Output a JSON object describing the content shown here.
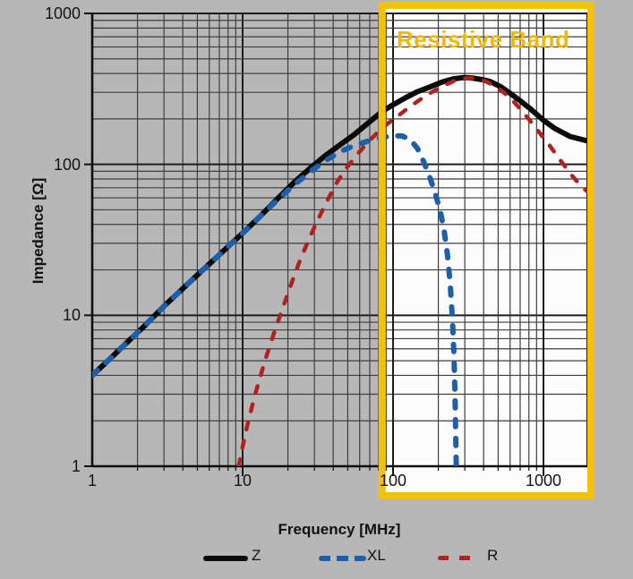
{
  "page": {
    "background_color": "#b7b7b7"
  },
  "chart_data": {
    "type": "line",
    "title": "",
    "xlabel": "Frequency [MHz]",
    "ylabel": "Impedance [Ω]",
    "x_scale": "log",
    "y_scale": "log",
    "xlim": [
      1,
      2000
    ],
    "ylim": [
      1,
      1000
    ],
    "x_ticks": [
      "1",
      "10",
      "100",
      "1000"
    ],
    "y_ticks": [
      "1000",
      "100",
      "10",
      "1"
    ],
    "grid": "log major and minor gridlines, dark gray",
    "legend_position": "bottom",
    "annotation": {
      "label": "Resistive Band",
      "x_range_mhz": [
        80,
        2000
      ],
      "box_color": "#F2C00D",
      "label_color": "#EFB80C",
      "fill_color": "#fcfcfc"
    },
    "series": [
      {
        "name": "Z",
        "style": "solid",
        "color": "#0b0b0b",
        "points": [
          [
            1,
            4
          ],
          [
            1.3,
            5.1
          ],
          [
            1.7,
            6.6
          ],
          [
            2.2,
            8.4
          ],
          [
            3,
            11.5
          ],
          [
            4,
            15
          ],
          [
            5,
            18.5
          ],
          [
            6.5,
            23.5
          ],
          [
            8,
            28.5
          ],
          [
            10,
            35
          ],
          [
            13,
            45
          ],
          [
            17,
            59
          ],
          [
            22,
            76
          ],
          [
            28,
            94
          ],
          [
            35,
            113
          ],
          [
            45,
            136
          ],
          [
            55,
            157
          ],
          [
            70,
            192
          ],
          [
            85,
            225
          ],
          [
            100,
            248
          ],
          [
            120,
            275
          ],
          [
            145,
            303
          ],
          [
            175,
            325
          ],
          [
            210,
            350
          ],
          [
            250,
            368
          ],
          [
            290,
            375
          ],
          [
            330,
            374
          ],
          [
            380,
            366
          ],
          [
            440,
            355
          ],
          [
            520,
            327
          ],
          [
            600,
            296
          ],
          [
            700,
            264
          ],
          [
            820,
            233
          ],
          [
            1000,
            196
          ],
          [
            1200,
            172
          ],
          [
            1500,
            153
          ],
          [
            1750,
            147
          ],
          [
            1960,
            143
          ]
        ]
      },
      {
        "name": "XL",
        "style": "dashed",
        "color": "#1d5fa8",
        "points": [
          [
            1,
            4
          ],
          [
            1.3,
            5.1
          ],
          [
            1.7,
            6.6
          ],
          [
            2.2,
            8.4
          ],
          [
            3,
            11.5
          ],
          [
            4,
            15
          ],
          [
            5,
            18.5
          ],
          [
            6.5,
            23.5
          ],
          [
            8,
            28.5
          ],
          [
            10,
            35
          ],
          [
            13,
            45
          ],
          [
            17,
            58
          ],
          [
            22,
            73
          ],
          [
            28,
            89
          ],
          [
            35,
            105
          ],
          [
            45,
            122
          ],
          [
            55,
            133
          ],
          [
            70,
            144
          ],
          [
            85,
            151
          ],
          [
            100,
            155
          ],
          [
            115,
            154
          ],
          [
            130,
            146
          ],
          [
            145,
            128
          ],
          [
            160,
            104
          ],
          [
            175,
            83
          ],
          [
            190,
            65
          ],
          [
            205,
            50
          ],
          [
            218,
            37
          ],
          [
            230,
            25
          ],
          [
            240,
            16
          ],
          [
            248,
            9.5
          ],
          [
            254,
            5.5
          ],
          [
            258,
            3
          ],
          [
            261,
            1.6
          ],
          [
            263,
            1
          ]
        ]
      },
      {
        "name": "R",
        "style": "dashed",
        "color": "#b02222",
        "points": [
          [
            9.4,
            1
          ],
          [
            10.5,
            1.7
          ],
          [
            12,
            2.9
          ],
          [
            14,
            4.9
          ],
          [
            16,
            7.4
          ],
          [
            18,
            10.4
          ],
          [
            21,
            16
          ],
          [
            24,
            23
          ],
          [
            28,
            33
          ],
          [
            32,
            44
          ],
          [
            37,
            59
          ],
          [
            43,
            78
          ],
          [
            50,
            97
          ],
          [
            58,
            117
          ],
          [
            68,
            140
          ],
          [
            80,
            165
          ],
          [
            92,
            186
          ],
          [
            105,
            205
          ],
          [
            125,
            235
          ],
          [
            150,
            267
          ],
          [
            180,
            300
          ],
          [
            215,
            331
          ],
          [
            255,
            357
          ],
          [
            295,
            370
          ],
          [
            330,
            373
          ],
          [
            370,
            368
          ],
          [
            420,
            352
          ],
          [
            480,
            328
          ],
          [
            550,
            297
          ],
          [
            630,
            262
          ],
          [
            720,
            226
          ],
          [
            830,
            190
          ],
          [
            950,
            160
          ],
          [
            1100,
            133
          ],
          [
            1300,
            106
          ],
          [
            1550,
            84
          ],
          [
            1750,
            73
          ],
          [
            1960,
            66
          ]
        ]
      }
    ]
  },
  "axes": {
    "xlabel": "Frequency [MHz]",
    "ylabel": "Impedance [Ω]",
    "x_tick_labels": [
      "1",
      "10",
      "100",
      "1000"
    ],
    "y_tick_labels": [
      "1000",
      "100",
      "10",
      "1"
    ]
  },
  "legend": {
    "entries": [
      "Z",
      "XL",
      "R"
    ]
  }
}
